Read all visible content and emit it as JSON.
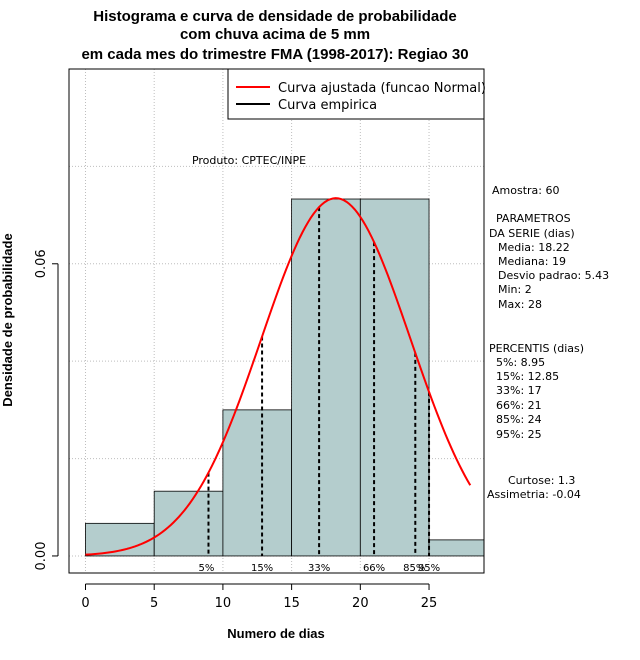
{
  "chart_data": {
    "type": "bar",
    "title_lines": [
      "Histograma e curva de densidade de probabilidade",
      "com chuva acima de 5 mm",
      "em cada mes do trimestre FMA (1998-2017): Regiao 30"
    ],
    "xlabel": "Numero de dias",
    "ylabel": "Densidade de probabilidade",
    "xlim": [
      -1.2,
      29
    ],
    "ylim": [
      -0.0035,
      0.1
    ],
    "x_ticks": [
      0,
      5,
      10,
      15,
      20,
      25
    ],
    "x_tick_labels": [
      "0",
      "5",
      "10",
      "15",
      "20",
      "25"
    ],
    "y_ticks": [
      0.0,
      0.06
    ],
    "y_tick_labels": [
      "0.00",
      "0.06"
    ],
    "grid": true,
    "bins": [
      {
        "start": 0,
        "end": 5,
        "density": 0.0067
      },
      {
        "start": 5,
        "end": 10,
        "density": 0.0133
      },
      {
        "start": 10,
        "end": 15,
        "density": 0.03
      },
      {
        "start": 15,
        "end": 20,
        "density": 0.0733
      },
      {
        "start": 20,
        "end": 25,
        "density": 0.0733
      },
      {
        "start": 25,
        "end": 30,
        "density": 0.0033
      }
    ],
    "normal_fit": {
      "mean": 18.22,
      "sd": 5.43,
      "x_from": 0,
      "x_to": 28
    },
    "percentile_lines": [
      {
        "label": "5%",
        "x": 8.95
      },
      {
        "label": "15%",
        "x": 12.85
      },
      {
        "label": "33%",
        "x": 17
      },
      {
        "label": "66%",
        "x": 21
      },
      {
        "label": "85%",
        "x": 24
      },
      {
        "label": "95%",
        "x": 25
      }
    ],
    "legend": [
      {
        "label": "Curva ajustada (funcao Normal)",
        "color": "#ff0000"
      },
      {
        "label": "Curva empirica",
        "color": "#000000"
      }
    ],
    "legend_position": "top-right",
    "product_note": "Produto: CPTEC/INPE",
    "colors": {
      "bar_fill": "#b4cdcd",
      "curve": "#ff0000",
      "grid": "#bebebe",
      "border": "#000000"
    }
  },
  "stats": {
    "amostra": "Amostra: 60",
    "param_title_1": "PARAMETROS",
    "param_title_2": "DA SERIE (dias)",
    "media": "Media: 18.22",
    "mediana": "Mediana: 19",
    "desvio": "Desvio padrao: 5.43",
    "min": "Min: 2",
    "max": "Max: 28",
    "pct_title": "PERCENTIS (dias)",
    "p5": "5%: 8.95",
    "p15": "15%: 12.85",
    "p33": "33%: 17",
    "p66": "66%: 21",
    "p85": "85%: 24",
    "p95": "95%: 25",
    "curtose": "Curtose: 1.3",
    "assimetria": "Assimetria: -0.04"
  }
}
